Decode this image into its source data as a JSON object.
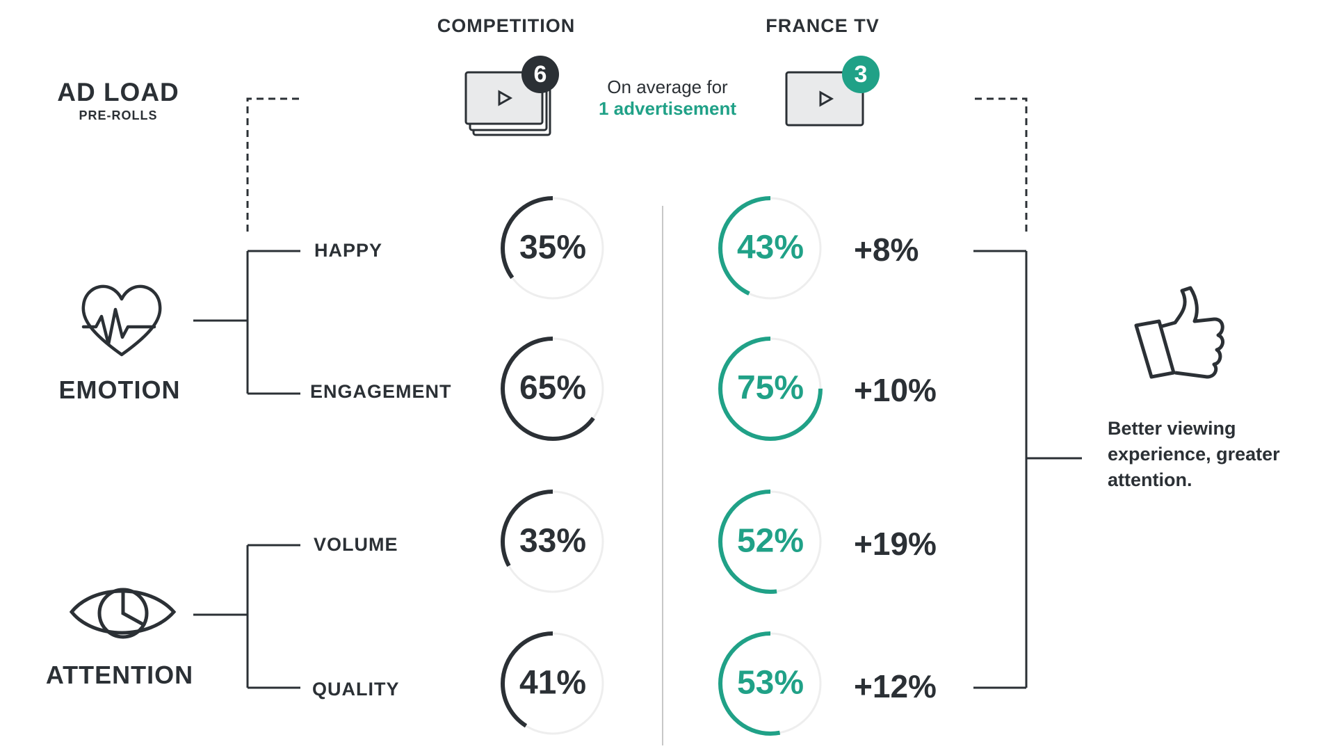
{
  "colors": {
    "dark": "#2b3035",
    "accent": "#20a187",
    "track": "#eeeeee",
    "divider": "#c7c7c7"
  },
  "headers": {
    "competition": "COMPETITION",
    "france_tv": "FRANCE TV"
  },
  "ad_load": {
    "title": "AD LOAD",
    "subtitle": "PRE-ROLLS",
    "competition_count": "6",
    "france_tv_count": "3",
    "average_line1": "On average for",
    "average_line2": "1 advertisement",
    "icons": [
      "video-stack-icon",
      "video-player-icon",
      "play-icon"
    ]
  },
  "categories": [
    {
      "label": "EMOTION",
      "icon": "heart-pulse-icon"
    },
    {
      "label": "ATTENTION",
      "icon": "eye-icon"
    }
  ],
  "metrics": [
    {
      "label": "HAPPY",
      "competition": 35,
      "france_tv": 43,
      "difference": "+8%",
      "competition_text": "35%",
      "france_tv_text": "43%"
    },
    {
      "label": "ENGAGEMENT",
      "competition": 65,
      "france_tv": 75,
      "difference": "+10%",
      "competition_text": "65%",
      "france_tv_text": "75%"
    },
    {
      "label": "VOLUME",
      "competition": 33,
      "france_tv": 52,
      "difference": "+19%",
      "competition_text": "33%",
      "france_tv_text": "52%"
    },
    {
      "label": "QUALITY",
      "competition": 41,
      "france_tv": 53,
      "difference": "+12%",
      "competition_text": "41%",
      "france_tv_text": "53%"
    }
  ],
  "conclusion": {
    "text": "Better viewing experience, greater attention.",
    "icon": "thumbs-up-icon"
  }
}
